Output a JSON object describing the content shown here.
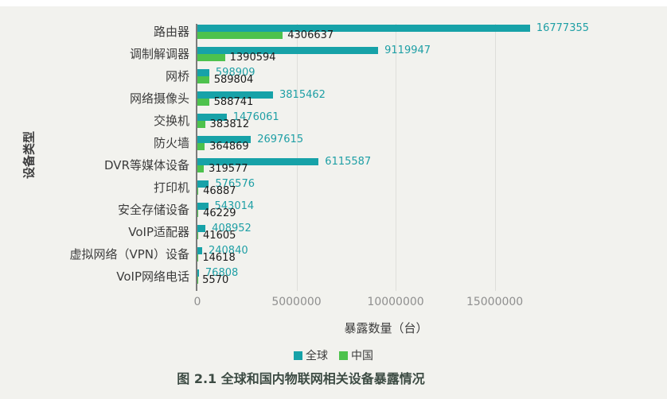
{
  "chart_data": {
    "type": "bar",
    "orientation": "horizontal",
    "title": "图 2.1 全球和国内物联网相关设备暴露情况",
    "xlabel": "暴露数量（台）",
    "ylabel": "设备类型",
    "categories": [
      "路由器",
      "调制解调器",
      "网桥",
      "网络摄像头",
      "交换机",
      "防火墙",
      "DVR等媒体设备",
      "打印机",
      "安全存储设备",
      "VoIP适配器",
      "虚拟网络（VPN）设备",
      "VoIP网络电话"
    ],
    "series": [
      {
        "name": "全球",
        "color": "#17a2a8",
        "label_color": "#1e9fa5",
        "values": [
          16777355,
          9119947,
          598909,
          3815462,
          1476061,
          2697615,
          6115587,
          576576,
          543014,
          408952,
          240840,
          76808
        ]
      },
      {
        "name": "中国",
        "color": "#4dc24d",
        "label_color": "#1c1c1c",
        "values": [
          4306637,
          1390594,
          589804,
          588741,
          383812,
          364869,
          319577,
          46887,
          46229,
          41605,
          14618,
          5570
        ]
      }
    ],
    "x_ticks": [
      "0",
      "5000000",
      "10000000",
      "15000000"
    ],
    "x_tick_values": [
      0,
      5000000,
      10000000,
      15000000
    ],
    "axis_max": 21200000,
    "grid": "vertical-light",
    "legend_position": "bottom",
    "background_color": "#f2f2ee",
    "axis_line_color": "#7b7b7b"
  }
}
